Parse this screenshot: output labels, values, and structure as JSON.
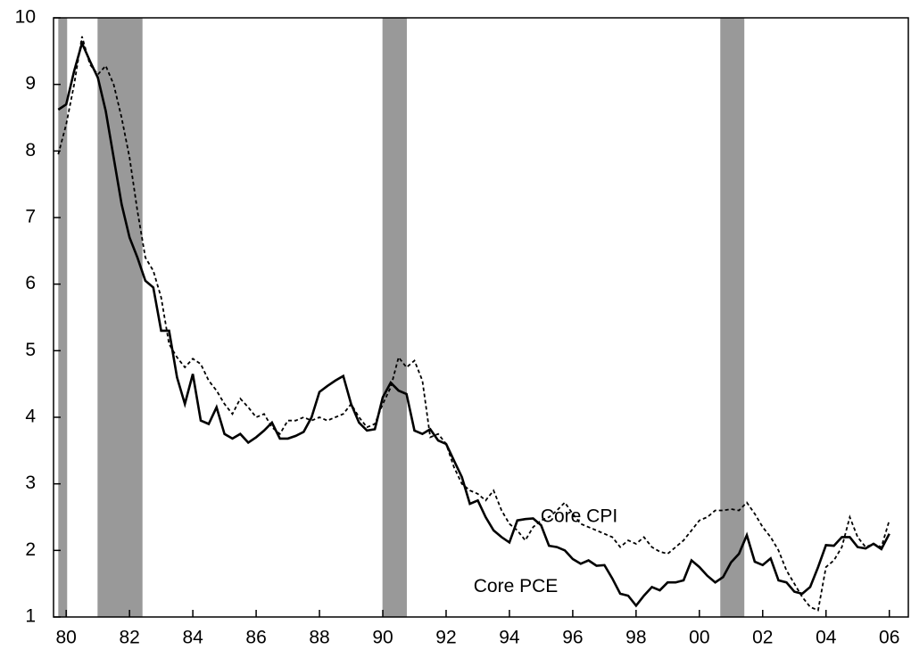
{
  "chart_data": {
    "type": "line",
    "x": [
      1979.75,
      1980,
      1980.25,
      1980.5,
      1980.75,
      1981,
      1981.25,
      1981.5,
      1981.75,
      1982,
      1982.25,
      1982.5,
      1982.75,
      1983,
      1983.25,
      1983.5,
      1983.75,
      1984,
      1984.25,
      1984.5,
      1984.75,
      1985,
      1985.25,
      1985.5,
      1985.75,
      1986,
      1986.25,
      1986.5,
      1986.75,
      1987,
      1987.25,
      1987.5,
      1987.75,
      1988,
      1988.25,
      1988.5,
      1988.75,
      1989,
      1989.25,
      1989.5,
      1989.75,
      1990,
      1990.25,
      1990.5,
      1990.75,
      1991,
      1991.25,
      1991.5,
      1991.75,
      1992,
      1992.25,
      1992.5,
      1992.75,
      1993,
      1993.25,
      1993.5,
      1993.75,
      1994,
      1994.25,
      1994.5,
      1994.75,
      1995,
      1995.25,
      1995.5,
      1995.75,
      1996,
      1996.25,
      1996.5,
      1996.75,
      1997,
      1997.25,
      1997.5,
      1997.75,
      1998,
      1998.25,
      1998.5,
      1998.75,
      1999,
      1999.25,
      1999.5,
      1999.75,
      2000,
      2000.25,
      2000.5,
      2000.75,
      2001,
      2001.25,
      2001.5,
      2001.75,
      2002,
      2002.25,
      2002.5,
      2002.75,
      2003,
      2003.25,
      2003.5,
      2003.75,
      2004,
      2004.25,
      2004.5,
      2004.75,
      2005,
      2005.25,
      2005.5,
      2005.75,
      2006
    ],
    "series": [
      {
        "name": "Core PCE",
        "color": "#000000",
        "dash": "solid",
        "values": [
          8.62,
          8.7,
          9.2,
          9.62,
          9.35,
          9.1,
          8.6,
          7.9,
          7.2,
          6.7,
          6.4,
          6.05,
          5.95,
          5.3,
          5.3,
          4.6,
          4.2,
          4.65,
          3.95,
          3.9,
          4.15,
          3.75,
          3.68,
          3.75,
          3.62,
          3.7,
          3.8,
          3.92,
          3.68,
          3.68,
          3.72,
          3.78,
          4.0,
          4.38,
          4.47,
          4.55,
          4.62,
          4.2,
          3.92,
          3.8,
          3.82,
          4.3,
          4.52,
          4.4,
          4.35,
          3.8,
          3.75,
          3.82,
          3.65,
          3.6,
          3.35,
          3.1,
          2.7,
          2.75,
          2.5,
          2.3,
          2.2,
          2.12,
          2.45,
          2.47,
          2.48,
          2.38,
          2.07,
          2.05,
          2.0,
          1.87,
          1.8,
          1.85,
          1.77,
          1.78,
          1.58,
          1.35,
          1.32,
          1.17,
          1.32,
          1.45,
          1.4,
          1.52,
          1.52,
          1.55,
          1.85,
          1.75,
          1.62,
          1.52,
          1.6,
          1.82,
          1.95,
          2.23,
          1.83,
          1.78,
          1.88,
          1.55,
          1.52,
          1.38,
          1.35,
          1.45,
          1.75,
          2.08,
          2.07,
          2.2,
          2.2,
          2.05,
          2.03,
          2.1,
          2.02,
          2.25
        ]
      },
      {
        "name": "Core CPI",
        "color": "#000000",
        "dash": "dashed",
        "values": [
          7.95,
          8.4,
          9.0,
          9.72,
          9.3,
          9.15,
          9.28,
          9.0,
          8.5,
          7.9,
          7.1,
          6.4,
          6.2,
          5.8,
          5.1,
          4.9,
          4.75,
          4.88,
          4.8,
          4.55,
          4.4,
          4.2,
          4.05,
          4.28,
          4.15,
          4.0,
          4.05,
          3.85,
          3.75,
          3.95,
          3.95,
          4.0,
          3.95,
          4.0,
          3.95,
          4.0,
          4.05,
          4.2,
          4.0,
          3.85,
          3.9,
          4.2,
          4.45,
          4.9,
          4.75,
          4.85,
          4.55,
          3.7,
          3.75,
          3.6,
          3.25,
          3.0,
          2.9,
          2.85,
          2.75,
          2.9,
          2.6,
          2.4,
          2.3,
          2.15,
          2.35,
          2.45,
          2.5,
          2.6,
          2.72,
          2.55,
          2.4,
          2.35,
          2.3,
          2.25,
          2.2,
          2.05,
          2.15,
          2.1,
          2.2,
          2.05,
          1.98,
          1.95,
          2.05,
          2.15,
          2.3,
          2.45,
          2.5,
          2.6,
          2.6,
          2.62,
          2.6,
          2.72,
          2.55,
          2.35,
          2.2,
          2.0,
          1.7,
          1.5,
          1.3,
          1.15,
          1.1,
          1.75,
          1.85,
          2.05,
          2.5,
          2.2,
          2.05,
          2.1,
          2.05,
          2.45
        ]
      }
    ],
    "shaded_regions": [
      [
        1979.75,
        1980.03
      ],
      [
        1980.99,
        1982.41
      ],
      [
        1989.99,
        1990.76
      ],
      [
        2000.66,
        2001.42
      ]
    ],
    "shade_color": "#999999",
    "annotations": [
      {
        "text": "Core CPI",
        "x": 1996.2,
        "y": 2.5
      },
      {
        "text": "Core PCE",
        "x": 1994.2,
        "y": 1.45
      }
    ],
    "xlim": [
      1979.6,
      2006.6
    ],
    "ylim": [
      1,
      10
    ],
    "yticks": [
      1,
      2,
      3,
      4,
      5,
      6,
      7,
      8,
      9,
      10
    ],
    "xticks": [
      {
        "value": 1980,
        "label": "80"
      },
      {
        "value": 1982,
        "label": "82"
      },
      {
        "value": 1984,
        "label": "84"
      },
      {
        "value": 1986,
        "label": "86"
      },
      {
        "value": 1988,
        "label": "88"
      },
      {
        "value": 1990,
        "label": "90"
      },
      {
        "value": 1992,
        "label": "92"
      },
      {
        "value": 1994,
        "label": "94"
      },
      {
        "value": 1996,
        "label": "96"
      },
      {
        "value": 1998,
        "label": "98"
      },
      {
        "value": 2000,
        "label": "00"
      },
      {
        "value": 2002,
        "label": "02"
      },
      {
        "value": 2004,
        "label": "04"
      },
      {
        "value": 2006,
        "label": "06"
      }
    ]
  }
}
